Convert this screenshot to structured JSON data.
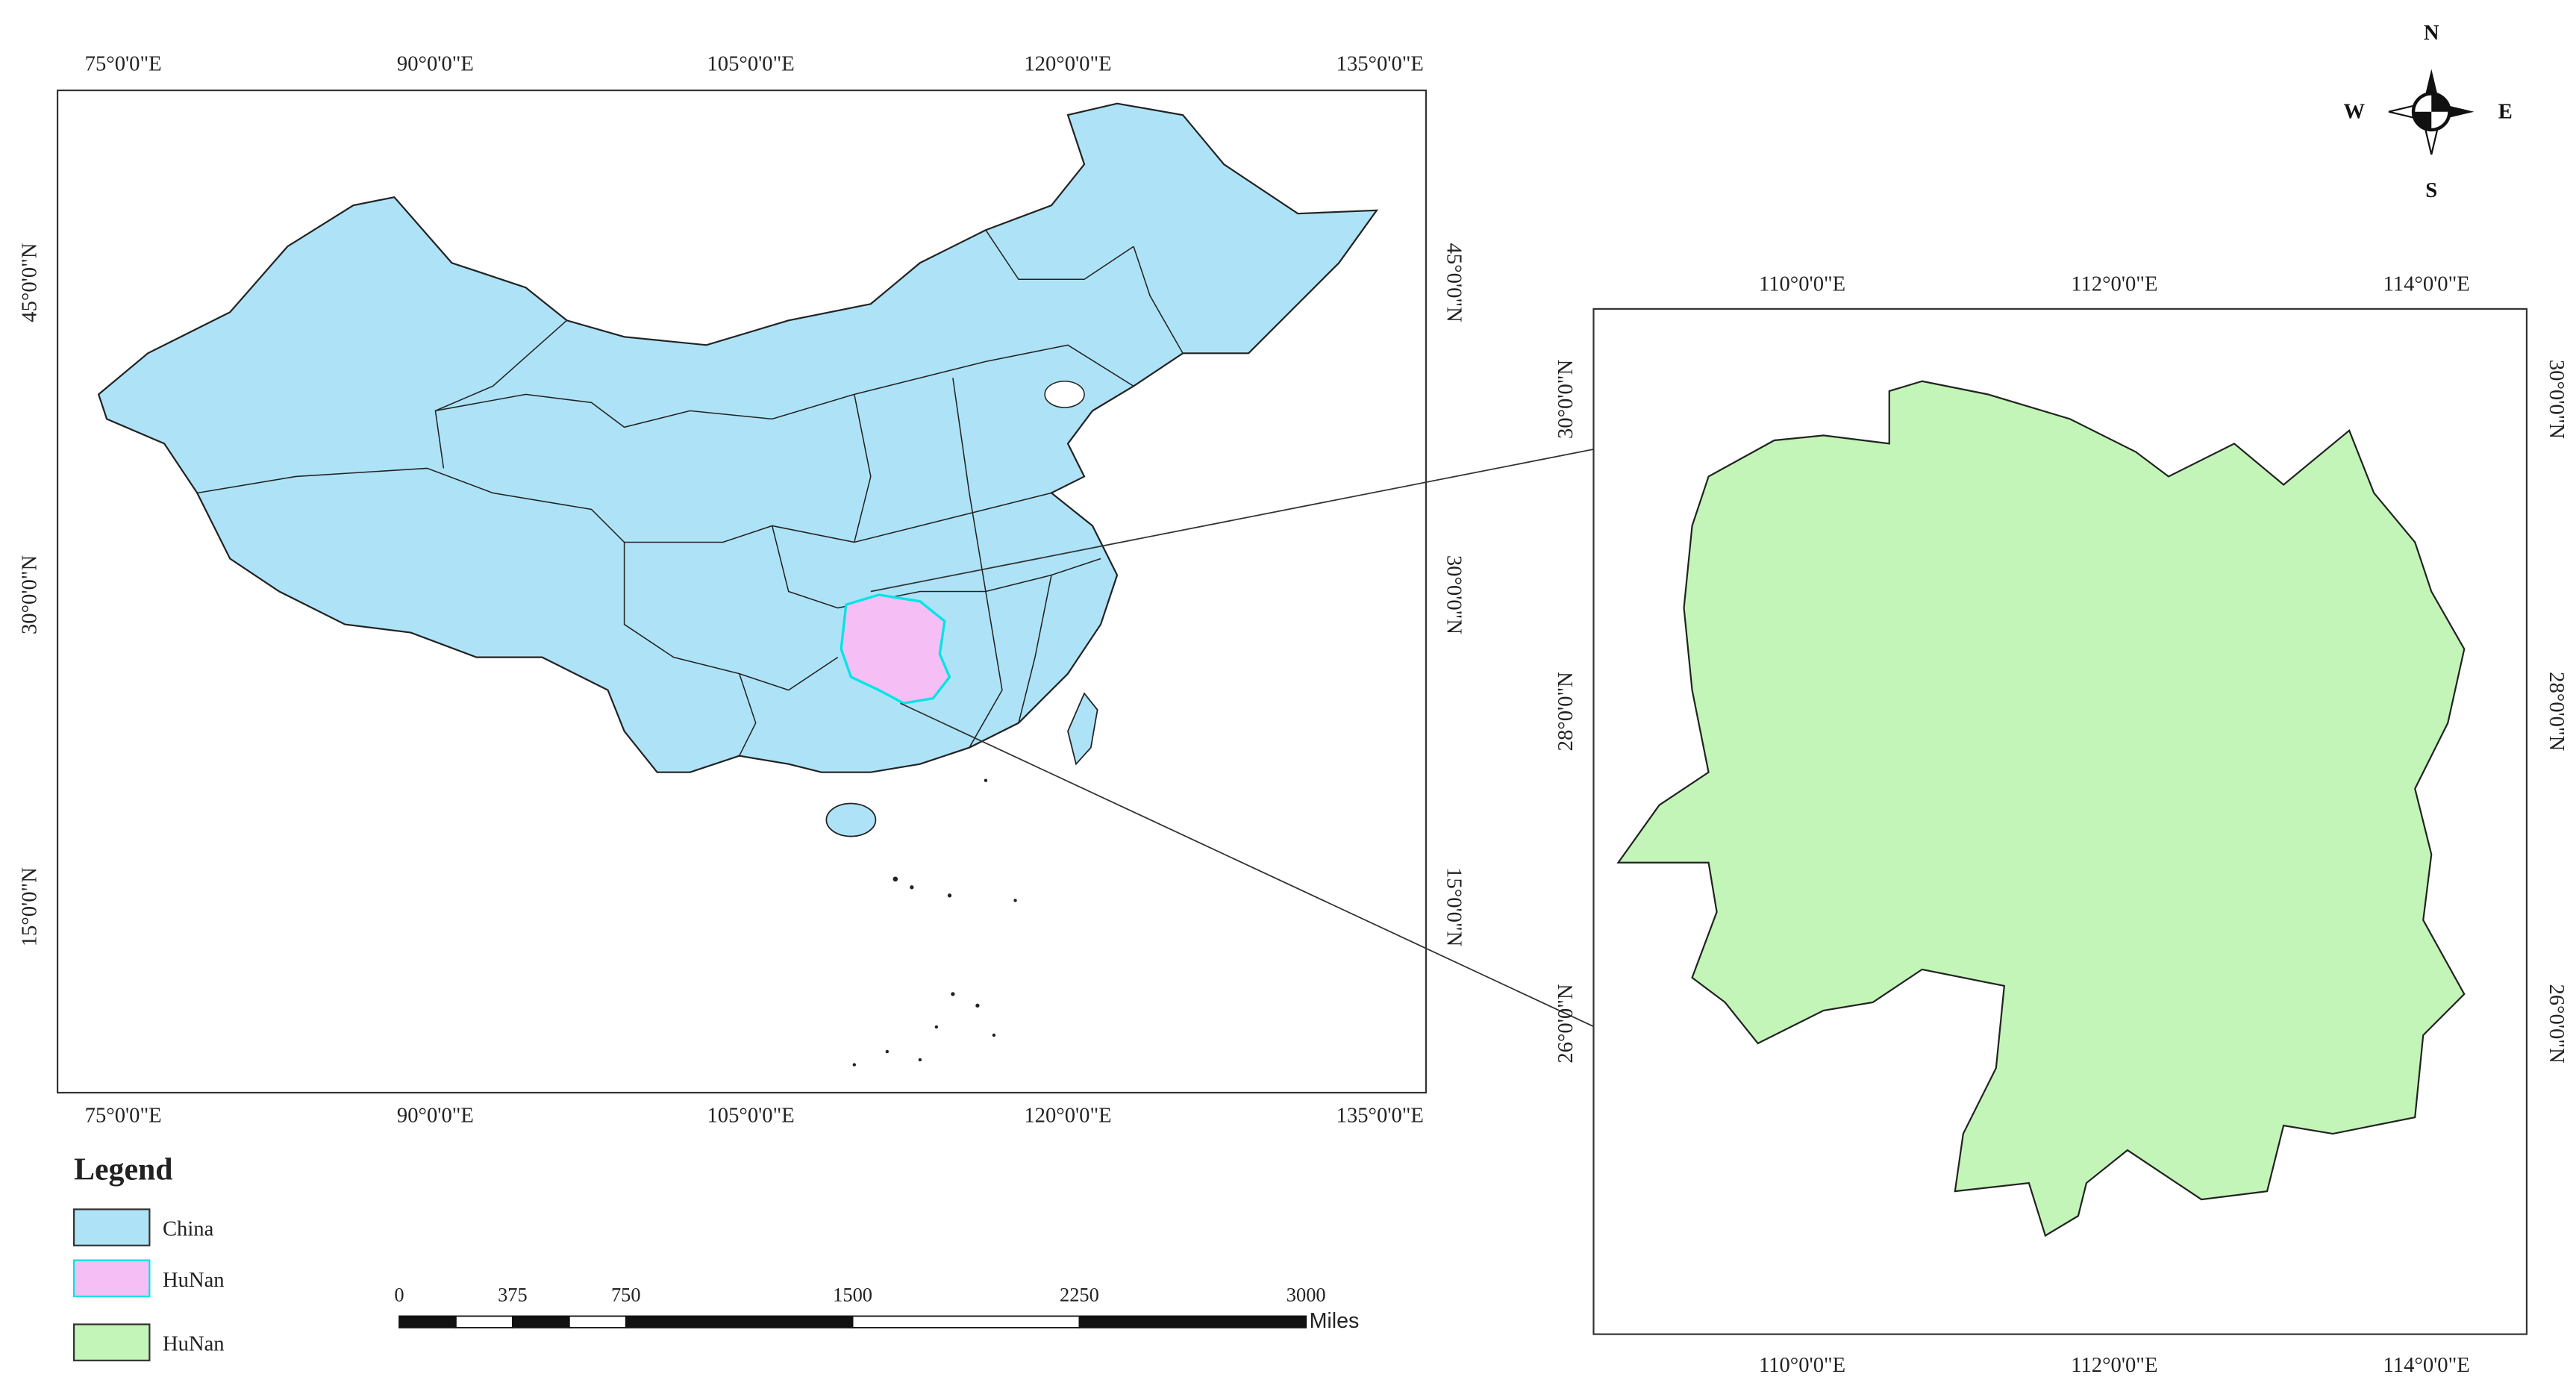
{
  "map": {
    "main_frame": {
      "top_labels": [
        "75°0'0\"E",
        "90°0'0\"E",
        "105°0'0\"E",
        "120°0'0\"E",
        "135°0'0\"E"
      ],
      "bottom_labels": [
        "75°0'0\"E",
        "90°0'0\"E",
        "105°0'0\"E",
        "120°0'0\"E",
        "135°0'0\"E"
      ],
      "left_labels": [
        "45°0'0\"N",
        "30°0'0\"N",
        "15°0'0\"N"
      ],
      "right_labels": [
        "45°0'0\"N",
        "30°0'0\"N",
        "15°0'0\"N"
      ]
    },
    "inset_frame": {
      "top_labels": [
        "110°0'0\"E",
        "112°0'0\"E",
        "114°0'0\"E"
      ],
      "bottom_labels": [
        "110°0'0\"E",
        "112°0'0\"E",
        "114°0'0\"E"
      ],
      "left_labels": [
        "30°0'0\"N",
        "28°0'0\"N",
        "26°0'0\"N"
      ],
      "right_labels": [
        "30°0'0\"N",
        "28°0'0\"N",
        "26°0'0\"N"
      ]
    },
    "compass": {
      "north": "N",
      "south": "S",
      "east": "E",
      "west": "W"
    },
    "legend": {
      "title": "Legend",
      "items": [
        {
          "label": "China",
          "color": "#aee3f7",
          "stroke": "#333333"
        },
        {
          "label": "HuNan",
          "color": "#f5bef5",
          "stroke": "#00e5e5"
        },
        {
          "label": "HuNan",
          "color": "#c3f5b8",
          "stroke": "#333333"
        }
      ]
    },
    "scale_bar": {
      "ticks": [
        0,
        375,
        750,
        1500,
        2250,
        3000
      ],
      "unit": "Miles"
    }
  }
}
